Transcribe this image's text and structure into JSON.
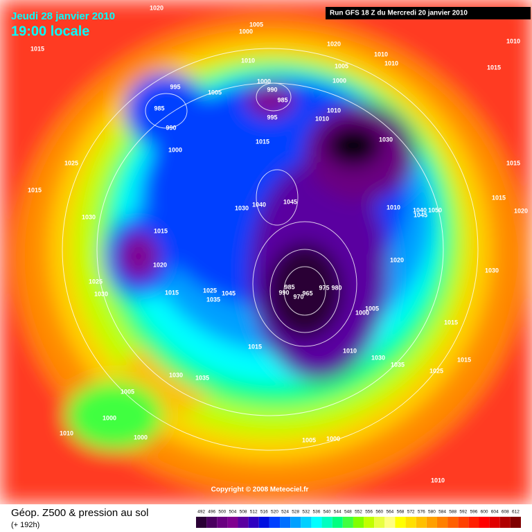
{
  "header": {
    "date": "Jeudi 28 janvier 2010",
    "time": "19:00 locale",
    "run": "Run GFS 18 Z du Mercredi 20 janvier 2010"
  },
  "copyright": "Copyright © 2008 Meteociel.fr",
  "footer": {
    "title": "Géop. Z500 & pression au sol",
    "lead": "(+ 192h)"
  },
  "legend": {
    "values": [
      492,
      496,
      500,
      504,
      508,
      512,
      516,
      520,
      524,
      528,
      532,
      536,
      540,
      544,
      548,
      552,
      556,
      560,
      564,
      568,
      572,
      576,
      580,
      584,
      588,
      592,
      596,
      600,
      604,
      608,
      612
    ],
    "colors": [
      "#2a0035",
      "#4b0060",
      "#6a0080",
      "#800090",
      "#5a00a0",
      "#3000c0",
      "#0010e0",
      "#0040ff",
      "#0070ff",
      "#00a0ff",
      "#00d0ff",
      "#00ffff",
      "#00ffc0",
      "#00ff80",
      "#40ff40",
      "#80ff00",
      "#c0ff00",
      "#e8ff40",
      "#ffff80",
      "#ffff00",
      "#ffe000",
      "#ffc000",
      "#ffa000",
      "#ff8000",
      "#ff6000",
      "#ff4000",
      "#ff2000",
      "#ff0000",
      "#e00000",
      "#b00000",
      "#800000"
    ]
  },
  "pressure_labels": [
    1020,
    1005,
    1000,
    1015,
    1020,
    1010,
    1010,
    1010,
    1015,
    1005,
    1010,
    1000,
    995,
    1000,
    990,
    1005,
    985,
    985,
    995,
    1010,
    1010,
    990,
    1030,
    1000,
    1015,
    1025,
    1015,
    1015,
    1015,
    1045,
    1030,
    1040,
    1010,
    1040,
    1050,
    1045,
    1020,
    1030,
    1015,
    1020,
    1020,
    1030,
    1025,
    985,
    975,
    980,
    990,
    970,
    965,
    1030,
    1015,
    1025,
    1035,
    1045,
    1005,
    1000,
    1015,
    1015,
    1010,
    1030,
    1035,
    1015,
    1025,
    1030,
    1035,
    1005,
    1000,
    1010,
    1000,
    1005,
    1000,
    1010
  ]
}
